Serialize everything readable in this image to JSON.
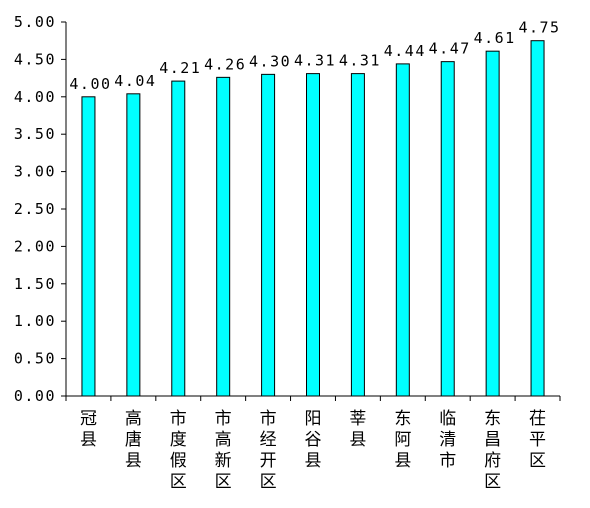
{
  "chart_data": {
    "type": "bar",
    "title": "",
    "xlabel": "",
    "ylabel": "",
    "categories": [
      "冠县",
      "高唐县",
      "市度假区",
      "市高新区",
      "市经开区",
      "阳谷县",
      "莘县",
      "东阿县",
      "临清市",
      "东昌府区",
      "茌平区"
    ],
    "values": [
      4.0,
      4.04,
      4.21,
      4.26,
      4.3,
      4.31,
      4.31,
      4.44,
      4.47,
      4.61,
      4.75
    ],
    "value_labels": [
      "4.00",
      "4.04",
      "4.21",
      "4.26",
      "4.30",
      "4.31",
      "4.31",
      "4.44",
      "4.47",
      "4.61",
      "4.75"
    ],
    "ylim": [
      0,
      5
    ],
    "yticks": [
      0,
      0.5,
      1,
      1.5,
      2,
      2.5,
      3,
      3.5,
      4,
      4.5,
      5
    ],
    "ytick_labels": [
      "0.00",
      "0.50",
      "1.00",
      "1.50",
      "2.00",
      "2.50",
      "3.00",
      "3.50",
      "4.00",
      "4.50",
      "5.00"
    ],
    "grid": false,
    "legend": "none",
    "bar_color": "#00FFFF",
    "bar_edge_color": "#000000"
  }
}
